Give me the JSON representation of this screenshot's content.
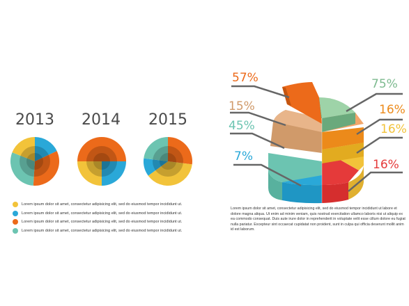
{
  "colors": {
    "yellow": "#f2c33a",
    "blue": "#2aa8d8",
    "orange": "#ec6a1a",
    "teal": "#6cc4b1",
    "green": "#7dba8f",
    "peach": "#f2a66a",
    "red": "#e53a3a",
    "tan": "#d09a6a",
    "gray": "#666666"
  },
  "chart_data": [
    {
      "type": "pie",
      "title": "2013",
      "slices": [
        {
          "color": "#2aa8d8",
          "value": 18
        },
        {
          "color": "#ec6a1a",
          "value": 33
        },
        {
          "color": "#6cc4b1",
          "value": 30
        },
        {
          "color": "#f2c33a",
          "value": 19
        }
      ]
    },
    {
      "type": "pie",
      "title": "2014",
      "slices": [
        {
          "color": "#ec6a1a",
          "value": 25
        },
        {
          "color": "#2aa8d8",
          "value": 25
        },
        {
          "color": "#f2c33a",
          "value": 25
        },
        {
          "color": "#ec6a1a",
          "value": 25
        }
      ]
    },
    {
      "type": "pie",
      "title": "2015",
      "slices": [
        {
          "color": "#ec6a1a",
          "value": 27
        },
        {
          "color": "#f2c33a",
          "value": 38
        },
        {
          "color": "#2aa8d8",
          "value": 12
        },
        {
          "color": "#6cc4b1",
          "value": 23
        }
      ]
    },
    {
      "type": "pie",
      "title": "",
      "labels_left": [
        {
          "text": "57%",
          "color": "#ec6a1a"
        },
        {
          "text": "15%",
          "color": "#d09a6a"
        },
        {
          "text": "45%",
          "color": "#6cc4b1"
        },
        {
          "text": "7%",
          "color": "#2aa8d8"
        }
      ],
      "labels_right": [
        {
          "text": "75%",
          "color": "#7dba8f"
        },
        {
          "text": "16%",
          "color": "#ec8a1a"
        },
        {
          "text": "16%",
          "color": "#f2c33a"
        },
        {
          "text": "16%",
          "color": "#e53a3a"
        }
      ]
    }
  ],
  "legend": [
    {
      "color": "#f2c33a",
      "text": "Lorem ipsum dolor sit amet, consectetur adipisicing elit, sed do eiusmod tempor incididunt ut."
    },
    {
      "color": "#2aa8d8",
      "text": "Lorem ipsum dolor sit amet, consectetur adipisicing elit, sed do eiusmod tempor incididunt ut."
    },
    {
      "color": "#ec6a1a",
      "text": "Lorem ipsum dolor sit amet, consectetur adipisicing elit, sed do eiusmod tempor incididunt ut."
    },
    {
      "color": "#6cc4b1",
      "text": "Lorem ipsum dolor sit amet, consectetur adipisicing elit, sed do eiusmod tempor incididunt ut."
    }
  ],
  "paragraph": "Lorem ipsum dolor sit amet, consectetur adipisicing elit, sed do eiusmod tempor incididunt ut labore et dolore magna aliqua. Ut enim ad minim veniam, quis nostrud exercitation ullamco laboris nisi ut aliquip ex ea commodo consequat. Duis aute irure dolor in reprehenderit in voluptate velit esse cillum dolore eu fugiat nulla pariatur. Excepteur sint occaecat cupidatat non proident, sunt in culpa qui officia deserunt mollit anim id est laborum."
}
